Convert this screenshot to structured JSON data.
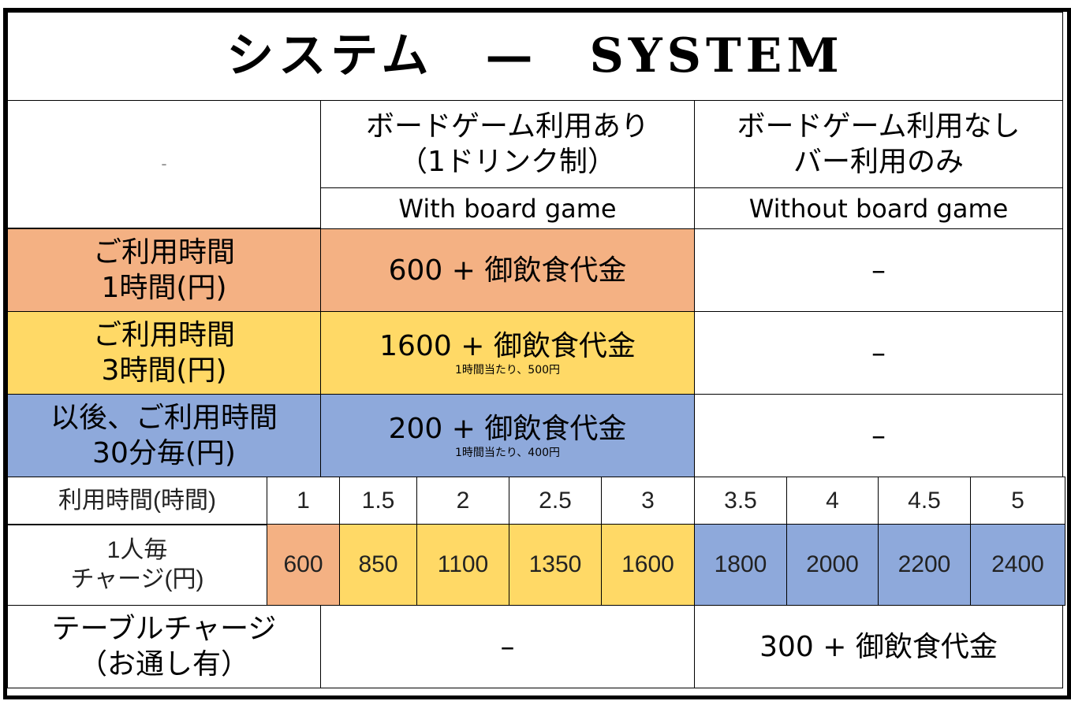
{
  "title": "システム　—　SYSTEM",
  "colors": {
    "one_hour": "#F4B183",
    "three_hours": "#FFD966",
    "extension": "#8EA9DB"
  },
  "header": {
    "corner": "-",
    "col1_jp_line1": "ボードゲーム利用あり",
    "col1_jp_line2": "（1ドリンク制）",
    "col1_en": "With board game",
    "col2_jp_line1": "ボードゲーム利用なし",
    "col2_jp_line2": "バー利用のみ",
    "col2_en": "Without board game"
  },
  "rows": [
    {
      "label_line1": "ご利用時間",
      "label_line2": "1時間(円)",
      "with": "600 + 御飲食代金",
      "note": "",
      "without": "–"
    },
    {
      "label_line1": "ご利用時間",
      "label_line2": "3時間(円)",
      "with": "1600 + 御飲食代金",
      "note": "1時間当たり、500円",
      "without": "–"
    },
    {
      "label_line1": "以後、ご利用時間",
      "label_line2": "30分毎(円)",
      "with": "200 + 御飲食代金",
      "note": "1時間当たり、400円",
      "without": "–"
    }
  ],
  "hours_table": {
    "hours_label": "利用時間(時間)",
    "charge_label_line1": "1人毎",
    "charge_label_line2": "チャージ(円)",
    "hours": [
      "1",
      "1.5",
      "2",
      "2.5",
      "3",
      "3.5",
      "4",
      "4.5",
      "5"
    ],
    "charges": [
      "600",
      "850",
      "1100",
      "1350",
      "1600",
      "1800",
      "2000",
      "2200",
      "2400"
    ]
  },
  "table_charge": {
    "label_line1": "テーブルチャージ",
    "label_line2": "（お通し有）",
    "with": "–",
    "without": "300 + 御飲食代金"
  }
}
